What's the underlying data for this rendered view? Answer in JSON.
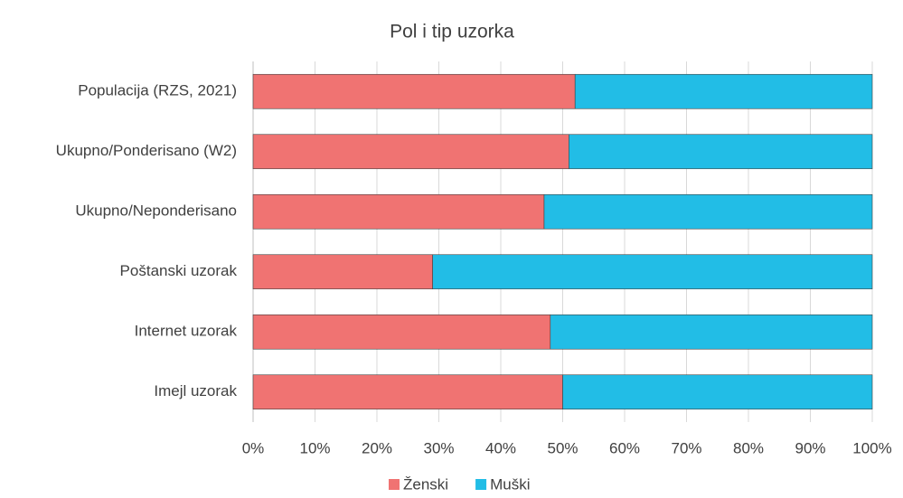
{
  "chart_data": {
    "type": "stacked-barh",
    "title": "Pol i tip uzorka",
    "categories": [
      "Populacija (RZS, 2021)",
      "Ukupno/Ponderisano (W2)",
      "Ukupno/Neponderisano",
      "Poštanski uzorak",
      "Internet uzorak",
      "Imejl uzorak"
    ],
    "series": [
      {
        "name": "Ženski",
        "color": "#f07372",
        "values": [
          52,
          51,
          47,
          29,
          48,
          50
        ]
      },
      {
        "name": "Muški",
        "color": "#22bde6",
        "values": [
          48,
          49,
          53,
          71,
          52,
          50
        ]
      }
    ],
    "xlim": [
      0,
      100
    ],
    "xticks": [
      {
        "value": 0,
        "label": "0%"
      },
      {
        "value": 10,
        "label": "10%"
      },
      {
        "value": 20,
        "label": "20%"
      },
      {
        "value": 30,
        "label": "30%"
      },
      {
        "value": 40,
        "label": "40%"
      },
      {
        "value": 50,
        "label": "50%"
      },
      {
        "value": 60,
        "label": "60%"
      },
      {
        "value": 70,
        "label": "70%"
      },
      {
        "value": 80,
        "label": "80%"
      },
      {
        "value": 90,
        "label": "90%"
      },
      {
        "value": 100,
        "label": "100%"
      }
    ],
    "grid": true,
    "legend": "bottom"
  }
}
